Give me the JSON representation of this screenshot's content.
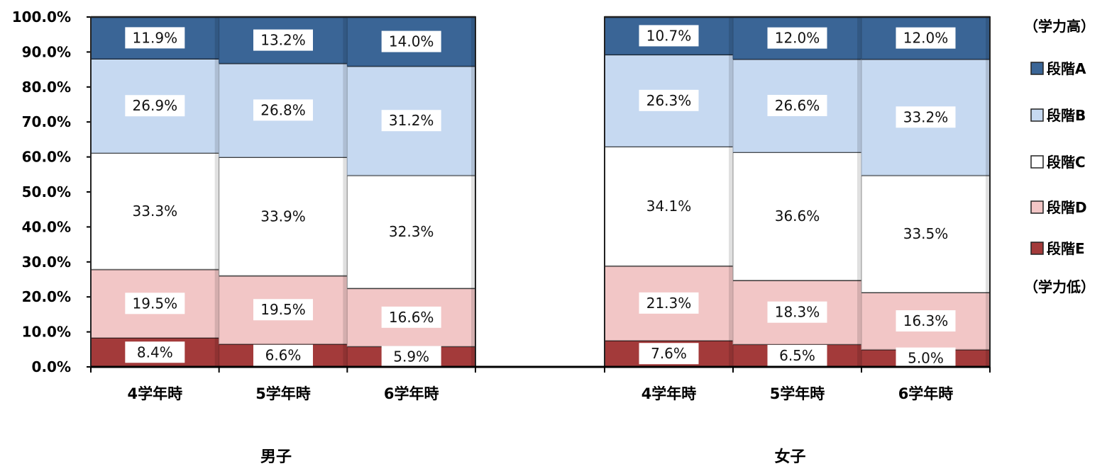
{
  "chart_data": {
    "type": "bar",
    "stacked": true,
    "percent_stacked": true,
    "ylim": [
      0,
      100
    ],
    "yticks": [
      "0.0%",
      "10.0%",
      "20.0%",
      "30.0%",
      "40.0%",
      "50.0%",
      "60.0%",
      "70.0%",
      "80.0%",
      "90.0%",
      "100.0%"
    ],
    "categories": [
      "4学年時",
      "5学年時",
      "6学年時"
    ],
    "groups": [
      {
        "name": "男子",
        "series": [
          {
            "name": "段階E",
            "values": [
              8.4,
              6.6,
              5.9
            ],
            "labels": [
              "8.4%",
              "6.6%",
              "5.9%"
            ]
          },
          {
            "name": "段階D",
            "values": [
              19.5,
              19.5,
              16.6
            ],
            "labels": [
              "19.5%",
              "19.5%",
              "16.6%"
            ]
          },
          {
            "name": "段階C",
            "values": [
              33.3,
              33.9,
              32.3
            ],
            "labels": [
              "33.3%",
              "33.9%",
              "32.3%"
            ]
          },
          {
            "name": "段階B",
            "values": [
              26.9,
              26.8,
              31.2
            ],
            "labels": [
              "26.9%",
              "26.8%",
              "31.2%"
            ]
          },
          {
            "name": "段階A",
            "values": [
              11.9,
              13.2,
              14.0
            ],
            "labels": [
              "11.9%",
              "13.2%",
              "14.0%"
            ]
          }
        ]
      },
      {
        "name": "女子",
        "series": [
          {
            "name": "段階E",
            "values": [
              7.6,
              6.5,
              5.0
            ],
            "labels": [
              "7.6%",
              "6.5%",
              "5.0%"
            ]
          },
          {
            "name": "段階D",
            "values": [
              21.3,
              18.3,
              16.3
            ],
            "labels": [
              "21.3%",
              "18.3%",
              "16.3%"
            ]
          },
          {
            "name": "段階C",
            "values": [
              34.1,
              36.6,
              33.5
            ],
            "labels": [
              "34.1%",
              "36.6%",
              "33.5%"
            ]
          },
          {
            "name": "段階B",
            "values": [
              26.3,
              26.6,
              33.2
            ],
            "labels": [
              "26.3%",
              "26.6%",
              "33.2%"
            ]
          },
          {
            "name": "段階A",
            "values": [
              10.7,
              12.0,
              12.0
            ],
            "labels": [
              "10.7%",
              "12.0%",
              "12.0%"
            ]
          }
        ]
      }
    ],
    "colors": {
      "段階A": "#3a6596",
      "段階B": "#c6d9f1",
      "段階C": "#ffffff",
      "段階D": "#f2c6c6",
      "段階E": "#a33a3a"
    },
    "legend": {
      "position": "right",
      "top_note": "（学力高）",
      "bottom_note": "（学力低）",
      "order": [
        "段階A",
        "段階B",
        "段階C",
        "段階D",
        "段階E"
      ]
    },
    "grid": false
  }
}
